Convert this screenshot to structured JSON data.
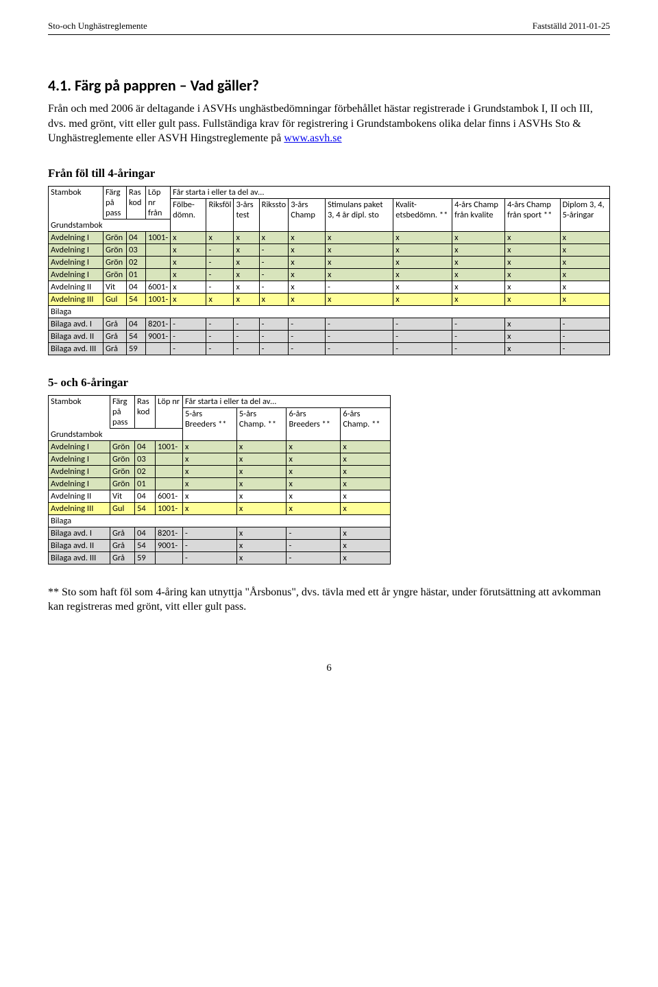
{
  "header": {
    "left": "Sto-och Unghästreglemente",
    "right": "Fastställd 2011-01-25"
  },
  "section": {
    "title": "4.1. Färg på pappren – Vad gäller?",
    "intro_part1": "Från och med 2006 är deltagande i ASVHs unghästbedömningar förbehållet hästar registrerade i Grundstambok I, II och III, dvs. med grönt, vitt eller gult pass. Fullständiga krav för registrering i Grundstambokens olika delar finns i ASVHs Sto & Unghästreglemente eller ASVH Hingstreglemente på ",
    "link_text": "www.asvh.se"
  },
  "table1": {
    "heading": "Från föl till 4-åringar",
    "col_labels": {
      "stambok": "Stambok",
      "farg": "Färg på pass",
      "ras": "Ras kod",
      "lop": "Löp nr från",
      "far_starta": "Får starta i eller ta del av…",
      "grundstambok": "Grundstambok",
      "c1": "Fölbe-dömn.",
      "c2": "Riksföl",
      "c3": "3-års test",
      "c4": "Rikssto",
      "c5": "3-års Champ",
      "c6": "Stimulans paket 3, 4 år dipl. sto",
      "c7": "Kvalit-etsbedömn. **",
      "c8": "4-års Champ från kvalite",
      "c9": "4-års Champ från sport **",
      "c10": "Diplom 3, 4, 5-åringar"
    },
    "rows": [
      {
        "bg": "green",
        "name": "Avdelning I",
        "farg": "Grön",
        "ras": "04",
        "lop": "1001-",
        "v": [
          "x",
          "x",
          "x",
          "x",
          "x",
          "x",
          "x",
          "x",
          "x",
          "x"
        ]
      },
      {
        "bg": "green",
        "name": "Avdelning I",
        "farg": "Grön",
        "ras": "03",
        "lop": "",
        "v": [
          "x",
          "-",
          "x",
          "-",
          "x",
          "x",
          "x",
          "x",
          "x",
          "x"
        ]
      },
      {
        "bg": "green",
        "name": "Avdelning I",
        "farg": "Grön",
        "ras": "02",
        "lop": "",
        "v": [
          "x",
          "-",
          "x",
          "-",
          "x",
          "x",
          "x",
          "x",
          "x",
          "x"
        ]
      },
      {
        "bg": "green",
        "name": "Avdelning I",
        "farg": "Grön",
        "ras": "01",
        "lop": "",
        "v": [
          "x",
          "-",
          "x",
          "-",
          "x",
          "x",
          "x",
          "x",
          "x",
          "x"
        ]
      },
      {
        "bg": "white",
        "name": "Avdelning II",
        "farg": "Vit",
        "ras": "04",
        "lop": "6001-",
        "v": [
          "x",
          "-",
          "x",
          "-",
          "x",
          "-",
          "x",
          "x",
          "x",
          "x"
        ]
      },
      {
        "bg": "yellow",
        "name": "Avdelning III",
        "farg": "Gul",
        "ras": "54",
        "lop": "1001-",
        "v": [
          "x",
          "x",
          "x",
          "x",
          "x",
          "x",
          "x",
          "x",
          "x",
          "x"
        ]
      }
    ],
    "bilaga_label": "Bilaga",
    "bilaga_rows": [
      {
        "name": "Bilaga avd. I",
        "farg": "Grå",
        "ras": "04",
        "lop": "8201-",
        "v": [
          "-",
          "-",
          "-",
          "-",
          "-",
          "-",
          "-",
          "-",
          "x",
          "-"
        ]
      },
      {
        "name": "Bilaga avd. II",
        "farg": "Grå",
        "ras": "54",
        "lop": "9001-",
        "v": [
          "-",
          "-",
          "-",
          "-",
          "-",
          "-",
          "-",
          "-",
          "x",
          "-"
        ]
      },
      {
        "name": "Bilaga avd. III",
        "farg": "Grå",
        "ras": "59",
        "lop": "",
        "v": [
          "-",
          "-",
          "-",
          "-",
          "-",
          "-",
          "-",
          "-",
          "x",
          "-"
        ]
      }
    ]
  },
  "table2": {
    "heading": "5- och 6-åringar",
    "col_labels": {
      "stambok": "Stambok",
      "farg": "Färg på pass",
      "ras": "Ras kod",
      "lop": "Löp nr",
      "far_starta": "Får starta i eller ta del av…",
      "grundstambok": "Grundstambok",
      "c1": "5-års Breeders **",
      "c2": "5-års Champ. **",
      "c3": "6-års Breeders **",
      "c4": "6-års Champ. **"
    },
    "rows": [
      {
        "bg": "green",
        "name": "Avdelning I",
        "farg": "Grön",
        "ras": "04",
        "lop": "1001-",
        "v": [
          "x",
          "x",
          "x",
          "x"
        ]
      },
      {
        "bg": "green",
        "name": "Avdelning I",
        "farg": "Grön",
        "ras": "03",
        "lop": "",
        "v": [
          "x",
          "x",
          "x",
          "x"
        ]
      },
      {
        "bg": "green",
        "name": "Avdelning I",
        "farg": "Grön",
        "ras": "02",
        "lop": "",
        "v": [
          "x",
          "x",
          "x",
          "x"
        ]
      },
      {
        "bg": "green",
        "name": "Avdelning I",
        "farg": "Grön",
        "ras": "01",
        "lop": "",
        "v": [
          "x",
          "x",
          "x",
          "x"
        ]
      },
      {
        "bg": "white",
        "name": "Avdelning II",
        "farg": "Vit",
        "ras": "04",
        "lop": "6001-",
        "v": [
          "x",
          "x",
          "x",
          "x"
        ]
      },
      {
        "bg": "yellow",
        "name": "Avdelning III",
        "farg": "Gul",
        "ras": "54",
        "lop": "1001-",
        "v": [
          "x",
          "x",
          "x",
          "x"
        ]
      }
    ],
    "bilaga_label": "Bilaga",
    "bilaga_rows": [
      {
        "name": "Bilaga avd. I",
        "farg": "Grå",
        "ras": "04",
        "lop": "8201-",
        "v": [
          "-",
          "x",
          "-",
          "x"
        ]
      },
      {
        "name": "Bilaga avd. II",
        "farg": "Grå",
        "ras": "54",
        "lop": "9001-",
        "v": [
          "-",
          "x",
          "-",
          "x"
        ]
      },
      {
        "name": "Bilaga avd. III",
        "farg": "Grå",
        "ras": "59",
        "lop": "",
        "v": [
          "-",
          "x",
          "-",
          "x"
        ]
      }
    ]
  },
  "footnote": "** Sto som haft föl som 4-åring kan utnyttja \"Årsbonus\", dvs. tävla med ett år yngre hästar, under förutsättning att avkomman kan registreras med grönt, vitt eller gult pass.",
  "page_number": "6",
  "colors": {
    "green": "#d8e4bc",
    "yellow": "#ffff99",
    "gray": "#d9d9d9"
  }
}
